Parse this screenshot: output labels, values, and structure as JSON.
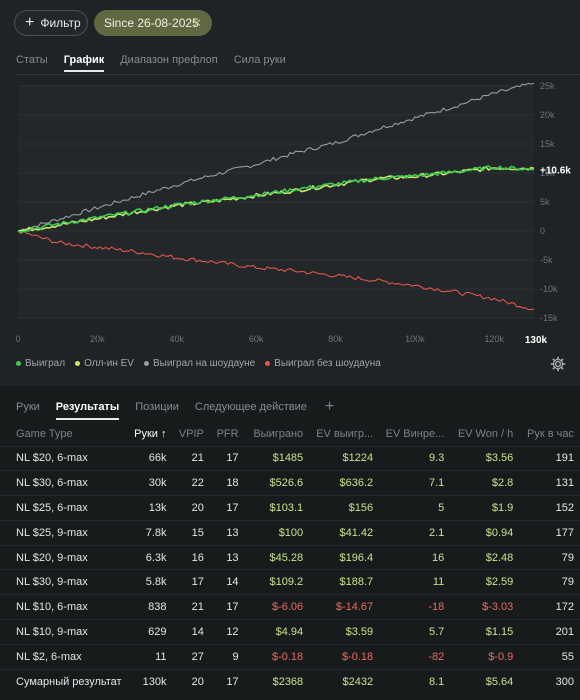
{
  "filter": {
    "label": "Фильтр",
    "chip_label": "Since 26-08-2025"
  },
  "tabs_top": [
    "Статы",
    "График",
    "Диапазон префлоп",
    "Сила руки"
  ],
  "tabs_top_active": 1,
  "chart_data": {
    "type": "line",
    "xlim": [
      0,
      130000
    ],
    "ylim": [
      -15000,
      25000
    ],
    "x_ticks": [
      "0",
      "20k",
      "40k",
      "60k",
      "80k",
      "100k",
      "120k",
      "130k"
    ],
    "y_ticks": [
      "25k",
      "20k",
      "15k",
      "10k",
      "5k",
      "0",
      "-5k",
      "-10k",
      "-15k"
    ],
    "end_label": "+10.6k",
    "series": [
      {
        "name": "Выиграл",
        "color": "#3ec94f",
        "x": [
          0,
          10000,
          20000,
          30000,
          40000,
          50000,
          60000,
          70000,
          80000,
          90000,
          100000,
          110000,
          120000,
          130000
        ],
        "y": [
          0,
          1200,
          2300,
          3400,
          4500,
          5400,
          6200,
          7200,
          8100,
          9000,
          9500,
          10200,
          11000,
          10600
        ]
      },
      {
        "name": "Олл-ин EV",
        "color": "#c7e86b",
        "x": [
          0,
          10000,
          20000,
          30000,
          40000,
          50000,
          60000,
          70000,
          80000,
          90000,
          100000,
          110000,
          120000,
          130000
        ],
        "y": [
          0,
          1000,
          2100,
          3300,
          4400,
          5200,
          6100,
          7000,
          8000,
          9000,
          9400,
          10100,
          10900,
          10800
        ]
      },
      {
        "name": "Выиграл на шоудауне",
        "color": "#9a9d9f",
        "x": [
          0,
          10000,
          20000,
          30000,
          40000,
          50000,
          60000,
          70000,
          80000,
          90000,
          100000,
          110000,
          120000,
          130000
        ],
        "y": [
          0,
          2000,
          4000,
          6000,
          8000,
          9800,
          11500,
          13500,
          15200,
          17500,
          19500,
          21500,
          23700,
          25500
        ]
      },
      {
        "name": "Выиграл без шоудауна",
        "color": "#e0564c",
        "x": [
          0,
          10000,
          20000,
          30000,
          40000,
          50000,
          60000,
          70000,
          80000,
          90000,
          100000,
          110000,
          120000,
          130000
        ],
        "y": [
          0,
          -2000,
          -2800,
          -3600,
          -4600,
          -5400,
          -6300,
          -6900,
          -7700,
          -8500,
          -9400,
          -10500,
          -11700,
          -13500
        ]
      }
    ]
  },
  "tabs_bottom": [
    "Руки",
    "Результаты",
    "Позиции",
    "Следующее действие"
  ],
  "tabs_bottom_active": 1,
  "table": {
    "headers": [
      "Game Type",
      "Руки ↑",
      "VPIP",
      "PFR",
      "Выиграно",
      "EV выигр...",
      "EV Винре...",
      "EV Won / h",
      "Рук в час"
    ],
    "rows": [
      [
        "NL $20, 6-max",
        "66k",
        "21",
        "17",
        "$1485",
        "$1224",
        "9.3",
        "$3.56",
        "191"
      ],
      [
        "NL $30, 6-max",
        "30k",
        "22",
        "18",
        "$526.6",
        "$636.2",
        "7.1",
        "$2.8",
        "131"
      ],
      [
        "NL $25, 6-max",
        "13k",
        "20",
        "17",
        "$103.1",
        "$156",
        "5",
        "$1.9",
        "152"
      ],
      [
        "NL $25, 9-max",
        "7.8k",
        "15",
        "13",
        "$100",
        "$41.42",
        "2.1",
        "$0.94",
        "177"
      ],
      [
        "NL $20, 9-max",
        "6.3k",
        "16",
        "13",
        "$45.28",
        "$196.4",
        "16",
        "$2.48",
        "79"
      ],
      [
        "NL $30, 9-max",
        "5.8k",
        "17",
        "14",
        "$109.2",
        "$188.7",
        "11",
        "$2.59",
        "79"
      ],
      [
        "NL $10, 6-max",
        "838",
        "21",
        "17",
        "$-6.06",
        "$-14.67",
        "-18",
        "$-3.03",
        "172"
      ],
      [
        "NL $10, 9-max",
        "629",
        "14",
        "12",
        "$4.94",
        "$3.59",
        "5.7",
        "$1.15",
        "201"
      ],
      [
        "NL $2, 6-max",
        "11",
        "27",
        "9",
        "$-0.18",
        "$-0.18",
        "-82",
        "$-0.9",
        "55"
      ]
    ],
    "total": [
      "Сумарный результат",
      "130k",
      "20",
      "17",
      "$2368",
      "$2432",
      "8.1",
      "$5.64",
      "300"
    ]
  },
  "colors": {
    "positive": "#c5e58a",
    "negative": "#e86a5e"
  },
  "icons": {
    "filter": "plus-icon",
    "chip_close": "close-icon",
    "settings": "gear-icon",
    "add_tab": "plus-icon"
  }
}
